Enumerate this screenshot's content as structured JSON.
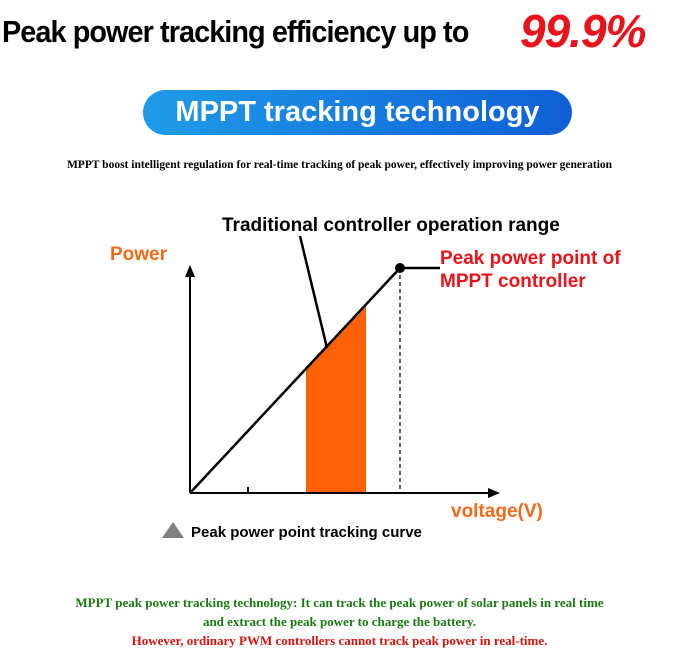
{
  "header": {
    "title": "Peak power tracking efficiency up to",
    "highlight": "99.9%"
  },
  "banner": "MPPT tracking technology",
  "subtitle": "MPPT boost intelligent regulation for real-time tracking of peak power, effectively improving power generation",
  "diagram": {
    "range_label": "Traditional controller operation range",
    "y_label": "Power",
    "x_label": "voltage(V)",
    "peak_label": [
      "Peak power point of",
      "MPPT controller"
    ],
    "legend": "Peak power point tracking curve"
  },
  "footer": [
    "MPPT peak power tracking technology: It can track the peak power of solar panels in real time",
    "and extract the peak power to charge the battery.",
    "However, ordinary PWM controllers cannot track peak power in real-time."
  ]
}
